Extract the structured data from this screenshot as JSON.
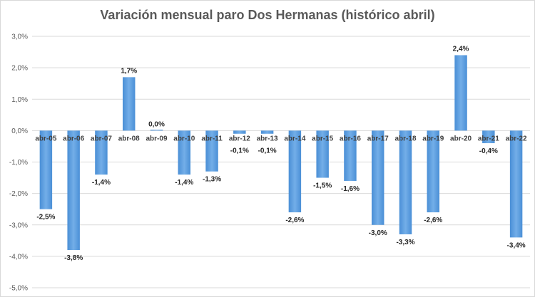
{
  "chart_data": {
    "type": "bar",
    "title": "Variación mensual paro Dos Hermanas (histórico abril)",
    "categories": [
      "abr-05",
      "abr-06",
      "abr-07",
      "abr-08",
      "abr-09",
      "abr-10",
      "abr-11",
      "abr-12",
      "abr-13",
      "abr-14",
      "abr-15",
      "abr-16",
      "abr-17",
      "abr-18",
      "abr-19",
      "abr-20",
      "abr-21",
      "abr-22"
    ],
    "values": [
      -2.5,
      -3.8,
      -1.4,
      1.7,
      0.0,
      -1.4,
      -1.3,
      -0.1,
      -0.1,
      -2.6,
      -1.5,
      -1.6,
      -3.0,
      -3.3,
      -2.6,
      2.4,
      -0.4,
      -3.4
    ],
    "value_labels": [
      "-2,5%",
      "-3,8%",
      "-1,4%",
      "1,7%",
      "0,0%",
      "-1,4%",
      "-1,3%",
      "-0,1%",
      "-0,1%",
      "-2,6%",
      "-1,5%",
      "-1,6%",
      "-3,0%",
      "-3,3%",
      "-2,6%",
      "2,4%",
      "-0,4%",
      "-3,4%"
    ],
    "yticks": [
      3,
      2,
      1,
      0,
      -1,
      -2,
      -3,
      -4,
      -5
    ],
    "ytick_labels": [
      "3,0%",
      "2,0%",
      "1,0%",
      "0,0%",
      "-1,0%",
      "-2,0%",
      "-3,0%",
      "-4,0%",
      "-5,0%"
    ],
    "ylim": [
      -5,
      3
    ],
    "grid": true,
    "xlabel": "",
    "ylabel": "",
    "colors": {
      "bar": "#4a8fd6",
      "bar_light": "#73aee8",
      "grid": "#d9d9d9",
      "title": "#595959"
    }
  }
}
